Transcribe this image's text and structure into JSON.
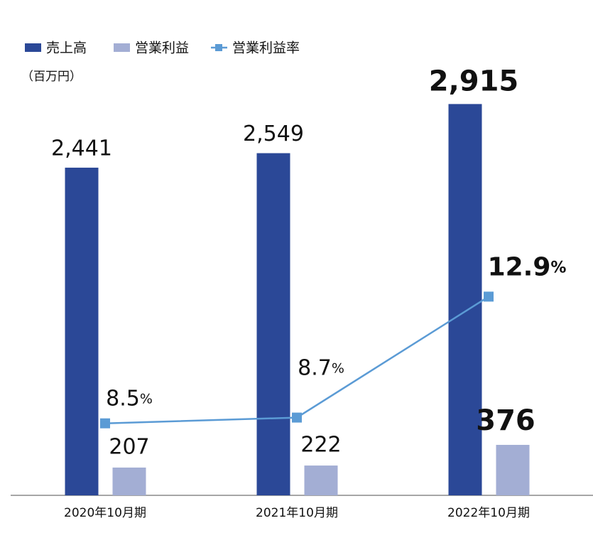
{
  "chart_data": {
    "type": "bar-line",
    "unit_label": "（百万円）",
    "categories": [
      "2020年10月期",
      "2021年10月期",
      "2022年10月期"
    ],
    "series": [
      {
        "name": "売上高",
        "color": "#2b4897",
        "values": [
          2441,
          2549,
          2915
        ],
        "value_labels": [
          "2,441",
          "2,549",
          "2,915"
        ]
      },
      {
        "name": "営業利益",
        "color": "#a3aed4",
        "values": [
          207,
          222,
          376
        ]
      },
      {
        "name": "営業利益率",
        "color": "#5b9bd5",
        "axis": "y2",
        "values": [
          8.5,
          8.7,
          12.9
        ],
        "value_labels": [
          "8.5%",
          "8.7%",
          "12.9%"
        ]
      }
    ],
    "ylim": [
      0,
      3690
    ],
    "y2lim": [
      6,
      23.2
    ]
  }
}
